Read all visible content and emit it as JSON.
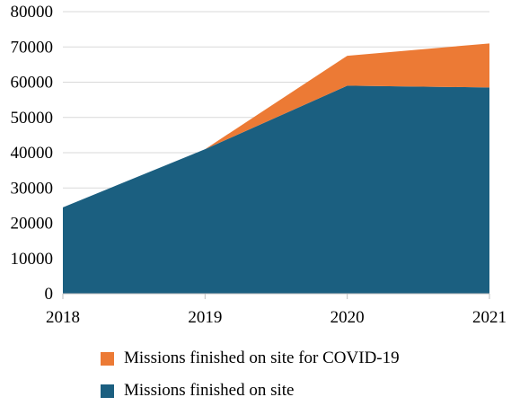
{
  "chart_data": {
    "type": "area",
    "stacked": true,
    "categories": [
      "2018",
      "2019",
      "2020",
      "2021"
    ],
    "series": [
      {
        "name": "Missions finished on site",
        "values": [
          24500,
          41000,
          59000,
          58500
        ],
        "color": "#1b5f80"
      },
      {
        "name": "Missions finished on site for COVID-19",
        "values": [
          0,
          0,
          8500,
          12500
        ],
        "color": "#ec7a35"
      }
    ],
    "ylim": [
      0,
      80000
    ],
    "yticks": [
      "0",
      "10000",
      "20000",
      "30000",
      "40000",
      "50000",
      "60000",
      "70000",
      "80000"
    ],
    "grid": true,
    "legend_position": "bottom",
    "title": "",
    "xlabel": "",
    "ylabel": ""
  }
}
